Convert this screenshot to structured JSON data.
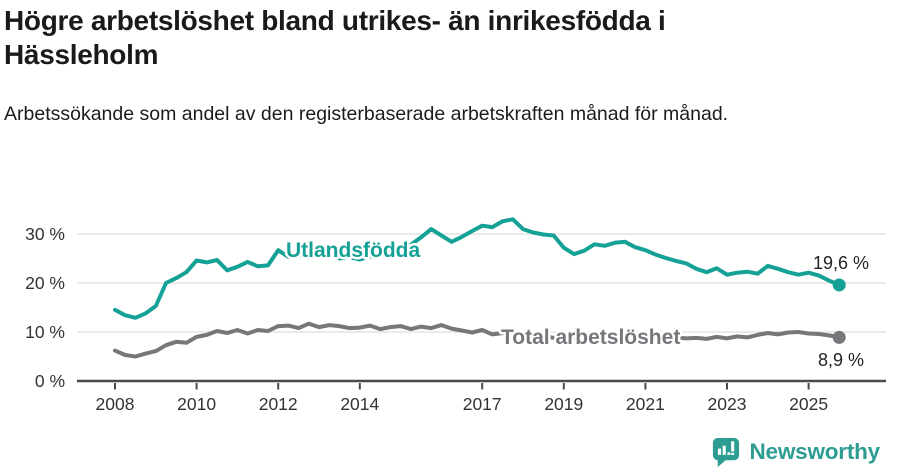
{
  "header": {
    "title": "Högre arbetslöshet bland utrikes- än inrikesfödda i Hässleholm",
    "subtitle": "Arbetssökande som andel av den registerbaserade arbetskraften månad för månad."
  },
  "chart_data": {
    "type": "line",
    "title": "Högre arbetslöshet bland utrikes- än inrikesfödda i Hässleholm",
    "subtitle": "Arbetssökande som andel av den registerbaserade arbetskraften månad för månad.",
    "grid": true,
    "legend_position": "inline-labels-on-lines",
    "x_start": 2008,
    "x_step": 0.25,
    "xlim": [
      2008,
      2026
    ],
    "ylim": [
      0,
      35
    ],
    "x_axis": {
      "tick_years": [
        2008,
        2010,
        2012,
        2014,
        2017,
        2019,
        2021,
        2023,
        2025
      ],
      "tick_labels": [
        "2008",
        "2010",
        "2012",
        "2014",
        "2017",
        "2019",
        "2021",
        "2023",
        "2025"
      ]
    },
    "y_axis": {
      "tick_values": [
        0,
        10,
        20,
        30
      ],
      "tick_labels": [
        "0 %",
        "10 %",
        "20 %",
        "30 %"
      ]
    },
    "series": [
      {
        "name": "Utlandsfödda",
        "color": "#15a195",
        "end_label": "19,6 %",
        "end_value": 19.6,
        "values": [
          14.5,
          13.4,
          12.9,
          13.8,
          15.3,
          20.0,
          21.0,
          22.2,
          24.6,
          24.2,
          24.7,
          22.6,
          23.3,
          24.3,
          23.4,
          23.6,
          26.7,
          25.3,
          25.8,
          25.2,
          25.6,
          26.1,
          25.0,
          25.3,
          24.8,
          25.4,
          25.6,
          25.9,
          26.5,
          27.8,
          29.3,
          31.0,
          29.7,
          28.4,
          29.4,
          30.6,
          31.7,
          31.4,
          32.6,
          33.0,
          31.0,
          30.3,
          29.9,
          29.7,
          27.2,
          25.9,
          26.6,
          27.9,
          27.6,
          28.2,
          28.4,
          27.3,
          26.7,
          25.8,
          25.1,
          24.5,
          24.0,
          22.9,
          22.2,
          23.0,
          21.7,
          22.1,
          22.3,
          21.9,
          23.5,
          22.9,
          22.2,
          21.7,
          22.1,
          21.5,
          20.5,
          19.6
        ]
      },
      {
        "name": "Total arbetslöshet",
        "color": "#78757b",
        "end_label": "8,9 %",
        "end_value": 8.9,
        "values": [
          6.2,
          5.3,
          5.0,
          5.6,
          6.1,
          7.3,
          8.0,
          7.8,
          9.0,
          9.4,
          10.2,
          9.8,
          10.4,
          9.7,
          10.4,
          10.2,
          11.2,
          11.3,
          10.8,
          11.7,
          11.0,
          11.4,
          11.2,
          10.8,
          10.9,
          11.3,
          10.6,
          11.0,
          11.2,
          10.6,
          11.1,
          10.8,
          11.4,
          10.7,
          10.3,
          9.9,
          10.4,
          9.5,
          9.8,
          9.1,
          9.4,
          9.0,
          9.2,
          8.8,
          9.0,
          8.7,
          8.9,
          9.2,
          9.0,
          9.6,
          9.8,
          9.4,
          9.2,
          9.0,
          8.8,
          8.9,
          8.7,
          8.8,
          8.6,
          9.0,
          8.7,
          9.1,
          8.9,
          9.4,
          9.8,
          9.5,
          9.9,
          10.0,
          9.7,
          9.6,
          9.3,
          8.9
        ]
      }
    ],
    "colors": {
      "accent_teal": "#15a195",
      "line_gray": "#78757b",
      "gridline": "#dedede",
      "axis": "#4a4a4a",
      "tick_text": "#333333",
      "annotation_text": "#232323"
    }
  },
  "footer": {
    "brand": "Newsworthy",
    "logo_color": "#2d9c92"
  }
}
